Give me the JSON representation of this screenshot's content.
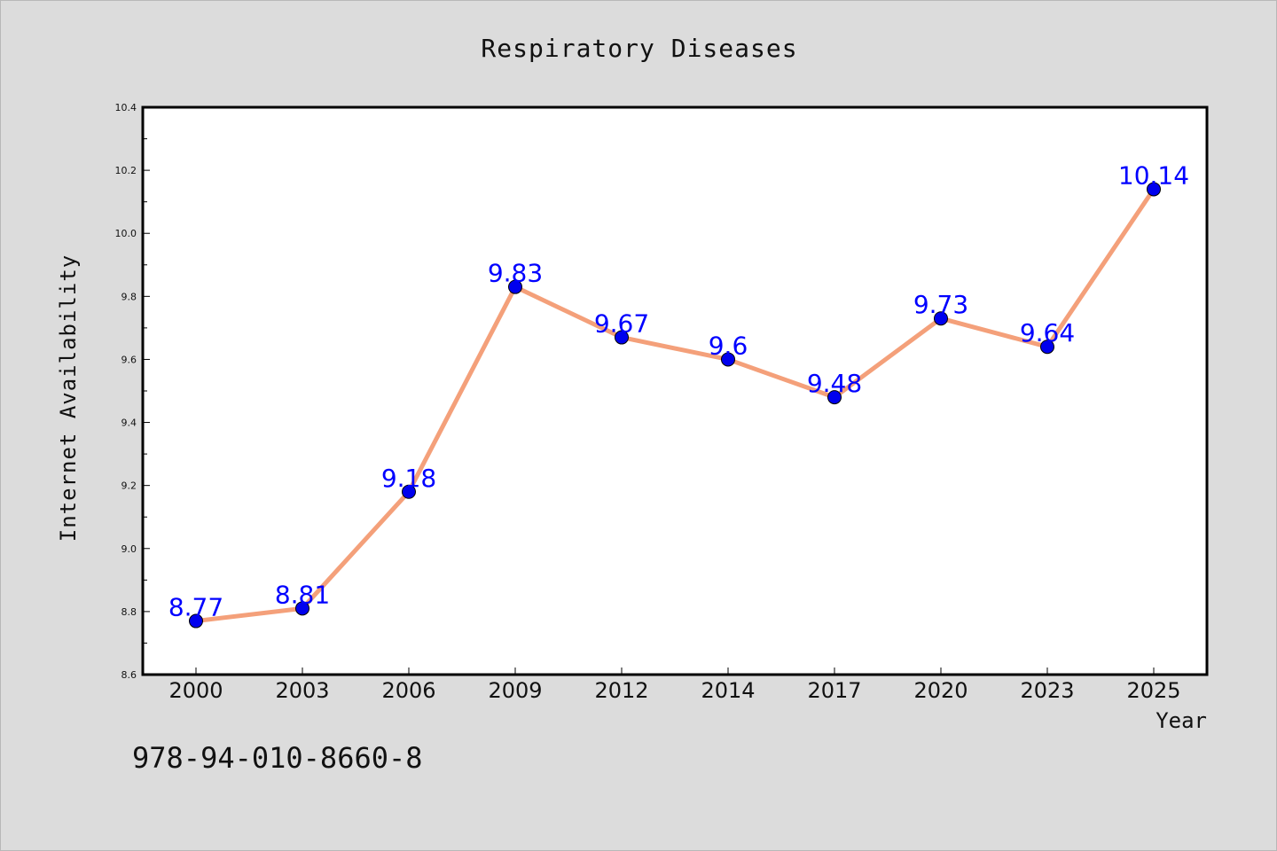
{
  "footnote": "978-94-010-8660-8",
  "colors": {
    "background": "#dcdcdc",
    "plot_background": "#ffffff",
    "line": "#f4a07a",
    "marker": "#0000ee",
    "data_label": "#0000ff"
  },
  "chart_data": {
    "type": "line",
    "title": "Respiratory Diseases",
    "xlabel": "Year",
    "ylabel": "Internet Availability",
    "categories": [
      "2000",
      "2003",
      "2006",
      "2009",
      "2012",
      "2014",
      "2017",
      "2020",
      "2023",
      "2025"
    ],
    "series": [
      {
        "values": [
          8.77,
          8.81,
          9.18,
          9.83,
          9.67,
          9.6,
          9.48,
          9.73,
          9.64,
          10.14
        ],
        "labels": [
          "8.77",
          "8.81",
          "9.18",
          "9.83",
          "9.67",
          "9.6",
          "9.48",
          "9.73",
          "9.64",
          "10.14"
        ]
      }
    ],
    "ylim": [
      8.6,
      10.4
    ],
    "yticks": [
      "8.6",
      "8.8",
      "9.0",
      "9.2",
      "9.4",
      "9.6",
      "9.8",
      "10.0",
      "10.2",
      "10.4"
    ],
    "grid": false,
    "legend": "none"
  }
}
